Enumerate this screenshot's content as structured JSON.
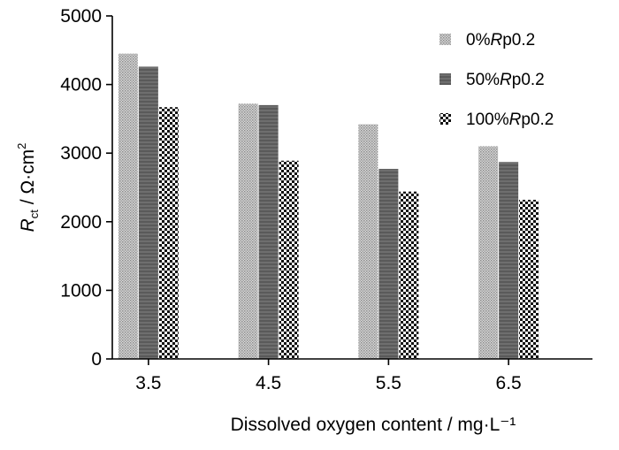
{
  "chart_data": {
    "type": "bar",
    "categories": [
      "3.5",
      "4.5",
      "5.5",
      "6.5"
    ],
    "series": [
      {
        "name": "0%Rp0.2",
        "values": [
          4450,
          3720,
          3420,
          3100
        ],
        "pattern": "fine-dots"
      },
      {
        "name": "50%Rp0.2",
        "values": [
          4260,
          3700,
          2770,
          2870
        ],
        "pattern": "dark-stripes"
      },
      {
        "name": "100%Rp0.2",
        "values": [
          3670,
          2890,
          2440,
          2320
        ],
        "pattern": "checkerboard"
      }
    ],
    "xlabel": "Dissolved oxygen content / mg·L⁻¹",
    "ylabel_main": "R",
    "ylabel_sub": "ct",
    "ylabel_rest": " / Ω·cm",
    "ylabel_sup": "2",
    "ylim": [
      0,
      5000
    ],
    "yticks": [
      0,
      1000,
      2000,
      3000,
      4000,
      5000
    ],
    "legend_position": "top-right",
    "grid": false
  }
}
